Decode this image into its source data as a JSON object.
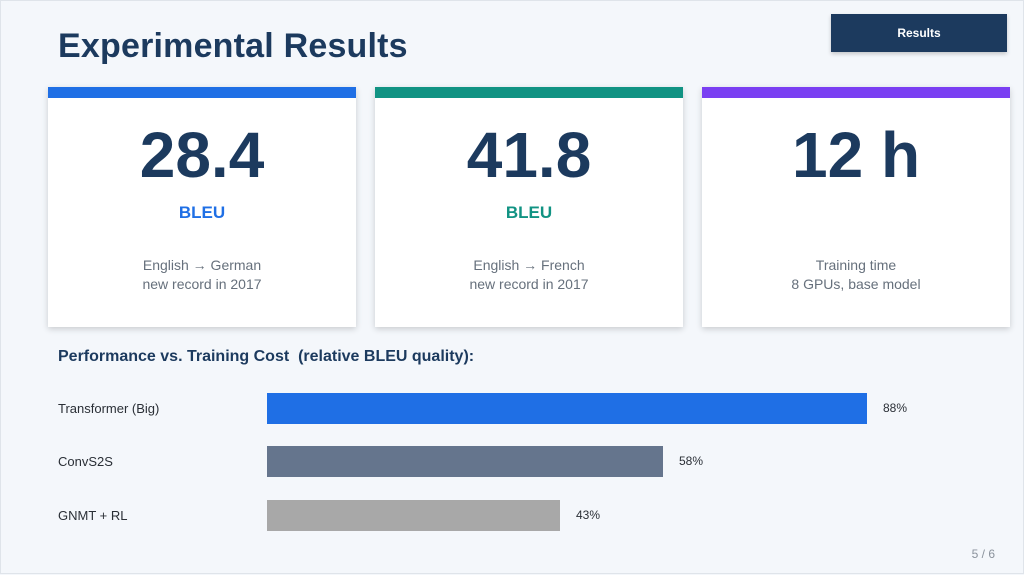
{
  "slide": {
    "title": "Experimental Results",
    "results_button": "Results",
    "page_number": "5 / 6"
  },
  "cards": [
    {
      "value": "28.4",
      "unit": "BLEU",
      "desc_line1": "English → German",
      "desc_line2": "new record in 2017",
      "accent": "#1f6fe5",
      "unit_color": "#1f6fe5"
    },
    {
      "value": "41.8",
      "unit": "BLEU",
      "desc_line1": "English → French",
      "desc_line2": "new record in 2017",
      "accent": "#119383",
      "unit_color": "#119383"
    },
    {
      "value": "12 h",
      "unit": "",
      "desc_line1": "Training time",
      "desc_line2": "8 GPUs, base model",
      "accent": "#7a3ff2",
      "unit_color": "#7a3ff2"
    }
  ],
  "chart_data": {
    "type": "bar",
    "title": "Performance vs. Training Cost  (relative BLEU quality):",
    "categories": [
      "Transformer (Big)",
      "ConvS2S",
      "GNMT + RL"
    ],
    "values": [
      88,
      58,
      43
    ],
    "value_labels": [
      "88%",
      "58%",
      "43%"
    ],
    "colors": [
      "#1f6fe5",
      "#65758d",
      "#a8a8a8"
    ],
    "xlabel": "",
    "ylabel": "",
    "xlim": [
      0,
      100
    ]
  }
}
